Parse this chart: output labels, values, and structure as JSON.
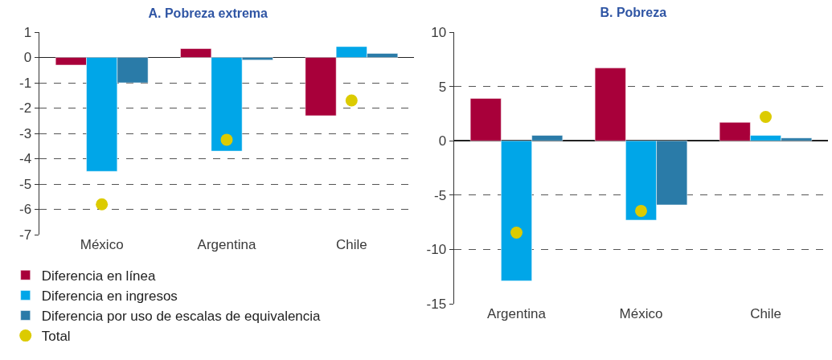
{
  "chart_data": [
    {
      "type": "bar",
      "title": "A. Pobreza extrema",
      "categories": [
        "México",
        "Argentina",
        "Chile"
      ],
      "ylim": [
        -7,
        1
      ],
      "yticks": [
        -7,
        -6,
        -5,
        -4,
        -3,
        -2,
        -1,
        0,
        1
      ],
      "grid": "y",
      "legend": "bottom",
      "marker": "circle",
      "series": [
        {
          "name": "Diferencia en línea",
          "color": "#a8003a",
          "values": [
            -0.3,
            0.35,
            -2.3
          ]
        },
        {
          "name": "Diferencia en ingresos",
          "color": "#00a6e8",
          "values": [
            -4.5,
            -3.7,
            0.43
          ]
        },
        {
          "name": "Diferencia por uso de escalas de equivalencia",
          "color": "#2a7ba8",
          "values": [
            -1.0,
            -0.1,
            0.16
          ]
        },
        {
          "name": "Total",
          "type": "scatter",
          "color": "#dccb00",
          "values": [
            -5.8,
            -3.25,
            -1.7
          ]
        }
      ]
    },
    {
      "type": "bar",
      "title": "B. Pobreza",
      "categories": [
        "Argentina",
        "México",
        "Chile"
      ],
      "ylim": [
        -15,
        10
      ],
      "yticks": [
        -15,
        -10,
        -5,
        0,
        5,
        10
      ],
      "grid": "y",
      "marker": "circle",
      "series": [
        {
          "color": "#a8003a",
          "values": [
            3.9,
            6.7,
            1.7
          ]
        },
        {
          "color": "#00a6e8",
          "values": [
            -12.9,
            -7.3,
            0.5
          ]
        },
        {
          "color": "#2a7ba8",
          "values": [
            0.5,
            -5.9,
            0.26
          ]
        },
        {
          "type": "scatter",
          "color": "#dccb00",
          "values": [
            -8.45,
            -6.45,
            2.2
          ]
        }
      ]
    }
  ]
}
